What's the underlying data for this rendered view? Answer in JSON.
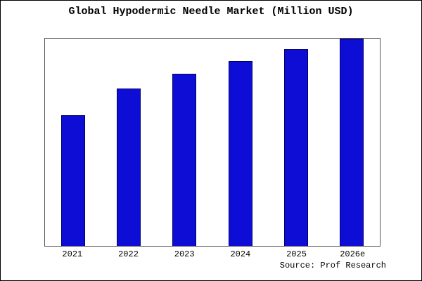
{
  "chart_data": {
    "type": "bar",
    "title": "Global Hypodermic Needle Market (Million USD)",
    "categories": [
      "2021",
      "2022",
      "2023",
      "2024",
      "2025",
      "2026e"
    ],
    "values": [
      63,
      76,
      83,
      89,
      95,
      100
    ],
    "xlabel": "",
    "ylabel": "",
    "ylim": [
      0,
      100
    ],
    "grid": false,
    "legend": null,
    "bar_color": "#0d0dd6",
    "bar_border_color": "#000066"
  },
  "source": "Source: Prof Research"
}
